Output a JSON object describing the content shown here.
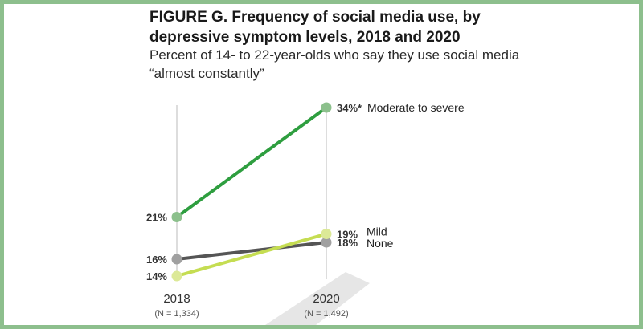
{
  "chart_data": {
    "type": "line",
    "title": "FIGURE G. Frequency of social media use, by depressive symptom levels, 2018 and 2020",
    "subtitle": "Percent of 14- to 22-year-olds who say they use social media “almost constantly”",
    "x": [
      "2018",
      "2020"
    ],
    "x_notes": [
      "(N = 1,334)",
      "(N = 1,492)"
    ],
    "series": [
      {
        "name": "Moderate to severe",
        "values": [
          21,
          34
        ],
        "labels": [
          "21%",
          "34%*"
        ],
        "color": "#2e9e3f",
        "point_color": "#8cc08c"
      },
      {
        "name": "Mild",
        "values": [
          14,
          19
        ],
        "labels": [
          "14%",
          "19%"
        ],
        "color": "#c5dd52",
        "point_color": "#dce997"
      },
      {
        "name": "None",
        "values": [
          16,
          18
        ],
        "labels": [
          "16%",
          "18%"
        ],
        "color": "#555555",
        "point_color": "#a0a0a0"
      }
    ],
    "ylim": [
      12,
      36
    ],
    "grid": false,
    "legend": "direct labels at line ends",
    "xlabel": "",
    "ylabel": ""
  }
}
